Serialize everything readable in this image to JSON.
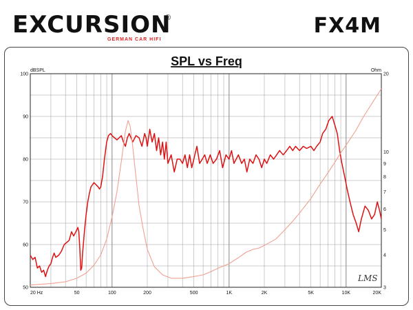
{
  "brand": {
    "logo_text": "EXCURSION",
    "registered": "®",
    "tagline": "GERMAN CAR HIFI",
    "model": "FX4M"
  },
  "watermark": "LMS",
  "chart_data": {
    "type": "line",
    "title": "SPL vs Freq",
    "ylabel": "dBSPL",
    "y2label": "Ohm",
    "x_scale": "log",
    "xlim": [
      20,
      20000
    ],
    "ylim": [
      50,
      100
    ],
    "y2lim": [
      3,
      20
    ],
    "y2_scale": "log",
    "grid": true,
    "x_ticks": [
      {
        "value": 20,
        "label": "20 Hz"
      },
      {
        "value": 50,
        "label": "50"
      },
      {
        "value": 100,
        "label": "100"
      },
      {
        "value": 200,
        "label": "200"
      },
      {
        "value": 500,
        "label": "500"
      },
      {
        "value": 1000,
        "label": "1K"
      },
      {
        "value": 2000,
        "label": "2K"
      },
      {
        "value": 5000,
        "label": "5K"
      },
      {
        "value": 10000,
        "label": "10K"
      },
      {
        "value": 20000,
        "label": "20K"
      }
    ],
    "y_ticks": [
      50,
      55,
      60,
      65,
      70,
      75,
      80,
      85,
      90,
      95,
      100
    ],
    "y2_ticks": [
      {
        "value": 3,
        "label": "3"
      },
      {
        "value": 4,
        "label": "4"
      },
      {
        "value": 5,
        "label": "5"
      },
      {
        "value": 6,
        "label": "6"
      },
      {
        "value": 7,
        "label": "7"
      },
      {
        "value": 8,
        "label": "8"
      },
      {
        "value": 9,
        "label": "9"
      },
      {
        "value": 10,
        "label": "10"
      },
      {
        "value": 20,
        "label": "20"
      }
    ],
    "series": [
      {
        "color": "#dd1111",
        "axis": "left",
        "points": [
          [
            20,
            57.5
          ],
          [
            21,
            56.5
          ],
          [
            22,
            57
          ],
          [
            23,
            54.5
          ],
          [
            24,
            55
          ],
          [
            25,
            53.5
          ],
          [
            26,
            54
          ],
          [
            27,
            52.5
          ],
          [
            28,
            54
          ],
          [
            29,
            55
          ],
          [
            30,
            55.5
          ],
          [
            31,
            57
          ],
          [
            32,
            58
          ],
          [
            33,
            57
          ],
          [
            35,
            57.5
          ],
          [
            37,
            58.5
          ],
          [
            39,
            60
          ],
          [
            41,
            60.5
          ],
          [
            43,
            61
          ],
          [
            45,
            63
          ],
          [
            47,
            62
          ],
          [
            49,
            63
          ],
          [
            51,
            64
          ],
          [
            52,
            63
          ],
          [
            53,
            59
          ],
          [
            54,
            54
          ],
          [
            55,
            54.5
          ],
          [
            56,
            58
          ],
          [
            58,
            63
          ],
          [
            60,
            67
          ],
          [
            62,
            70
          ],
          [
            64,
            72
          ],
          [
            66,
            73.5
          ],
          [
            68,
            74
          ],
          [
            70,
            74.5
          ],
          [
            73,
            74
          ],
          [
            76,
            73.5
          ],
          [
            78,
            73
          ],
          [
            80,
            73.5
          ],
          [
            83,
            76
          ],
          [
            86,
            80
          ],
          [
            90,
            84
          ],
          [
            93,
            85.5
          ],
          [
            97,
            86
          ],
          [
            100,
            85.5
          ],
          [
            105,
            85
          ],
          [
            110,
            84.5
          ],
          [
            115,
            85
          ],
          [
            120,
            85.5
          ],
          [
            125,
            84
          ],
          [
            130,
            83
          ],
          [
            135,
            85
          ],
          [
            140,
            86
          ],
          [
            145,
            85
          ],
          [
            150,
            84
          ],
          [
            160,
            85.5
          ],
          [
            170,
            85
          ],
          [
            180,
            83
          ],
          [
            190,
            86
          ],
          [
            195,
            85
          ],
          [
            200,
            83
          ],
          [
            210,
            87
          ],
          [
            220,
            84
          ],
          [
            230,
            86
          ],
          [
            240,
            82
          ],
          [
            250,
            85
          ],
          [
            260,
            81
          ],
          [
            270,
            84
          ],
          [
            280,
            80
          ],
          [
            290,
            84
          ],
          [
            300,
            79
          ],
          [
            320,
            81
          ],
          [
            340,
            77
          ],
          [
            360,
            80
          ],
          [
            380,
            80
          ],
          [
            400,
            79
          ],
          [
            420,
            81
          ],
          [
            440,
            78
          ],
          [
            460,
            81
          ],
          [
            480,
            78
          ],
          [
            500,
            80
          ],
          [
            530,
            83
          ],
          [
            560,
            79
          ],
          [
            590,
            80
          ],
          [
            620,
            81
          ],
          [
            650,
            79
          ],
          [
            690,
            81
          ],
          [
            730,
            79
          ],
          [
            780,
            80
          ],
          [
            830,
            82
          ],
          [
            880,
            78
          ],
          [
            940,
            81
          ],
          [
            1000,
            80
          ],
          [
            1050,
            82
          ],
          [
            1100,
            79
          ],
          [
            1150,
            80
          ],
          [
            1200,
            81
          ],
          [
            1280,
            79
          ],
          [
            1350,
            80
          ],
          [
            1420,
            77
          ],
          [
            1500,
            80
          ],
          [
            1600,
            79
          ],
          [
            1700,
            81
          ],
          [
            1800,
            80
          ],
          [
            1900,
            78
          ],
          [
            2000,
            80
          ],
          [
            2100,
            79
          ],
          [
            2250,
            81
          ],
          [
            2400,
            80
          ],
          [
            2550,
            81
          ],
          [
            2700,
            82
          ],
          [
            2900,
            81
          ],
          [
            3100,
            82
          ],
          [
            3300,
            83
          ],
          [
            3500,
            82
          ],
          [
            3700,
            83
          ],
          [
            4000,
            82
          ],
          [
            4300,
            83
          ],
          [
            4600,
            82.5
          ],
          [
            5000,
            83
          ],
          [
            5300,
            82
          ],
          [
            5600,
            83
          ],
          [
            6000,
            84
          ],
          [
            6300,
            86
          ],
          [
            6700,
            87
          ],
          [
            7100,
            89
          ],
          [
            7600,
            90
          ],
          [
            8000,
            88
          ],
          [
            8400,
            86
          ],
          [
            8800,
            82
          ],
          [
            9200,
            79
          ],
          [
            9700,
            76
          ],
          [
            10200,
            73
          ],
          [
            10800,
            70
          ],
          [
            11500,
            67
          ],
          [
            12200,
            65
          ],
          [
            12800,
            63
          ],
          [
            13500,
            66
          ],
          [
            14500,
            69
          ],
          [
            15500,
            68
          ],
          [
            16500,
            66
          ],
          [
            17500,
            67
          ],
          [
            18500,
            70
          ],
          [
            19300,
            68
          ],
          [
            20000,
            66
          ]
        ]
      },
      {
        "color": "#f0a090",
        "axis": "right",
        "points": [
          [
            20,
            3.06
          ],
          [
            30,
            3.1
          ],
          [
            40,
            3.15
          ],
          [
            50,
            3.25
          ],
          [
            60,
            3.4
          ],
          [
            70,
            3.65
          ],
          [
            80,
            4.0
          ],
          [
            90,
            4.6
          ],
          [
            100,
            5.6
          ],
          [
            110,
            7.0
          ],
          [
            120,
            9.2
          ],
          [
            130,
            12.0
          ],
          [
            137,
            13.2
          ],
          [
            143,
            12.5
          ],
          [
            150,
            10.5
          ],
          [
            160,
            8.0
          ],
          [
            170,
            6.2
          ],
          [
            185,
            5.0
          ],
          [
            200,
            4.2
          ],
          [
            230,
            3.6
          ],
          [
            270,
            3.35
          ],
          [
            320,
            3.25
          ],
          [
            400,
            3.25
          ],
          [
            500,
            3.3
          ],
          [
            600,
            3.35
          ],
          [
            700,
            3.45
          ],
          [
            800,
            3.55
          ],
          [
            1000,
            3.7
          ],
          [
            1200,
            3.9
          ],
          [
            1400,
            4.1
          ],
          [
            1600,
            4.2
          ],
          [
            1800,
            4.25
          ],
          [
            2000,
            4.35
          ],
          [
            2500,
            4.6
          ],
          [
            3000,
            5.0
          ],
          [
            3500,
            5.4
          ],
          [
            4000,
            5.8
          ],
          [
            5000,
            6.6
          ],
          [
            6000,
            7.5
          ],
          [
            7000,
            8.3
          ],
          [
            8000,
            9.1
          ],
          [
            9000,
            9.9
          ],
          [
            10000,
            10.6
          ],
          [
            12000,
            12.0
          ],
          [
            14000,
            13.6
          ],
          [
            17000,
            15.6
          ],
          [
            20000,
            17.5
          ]
        ]
      }
    ]
  }
}
